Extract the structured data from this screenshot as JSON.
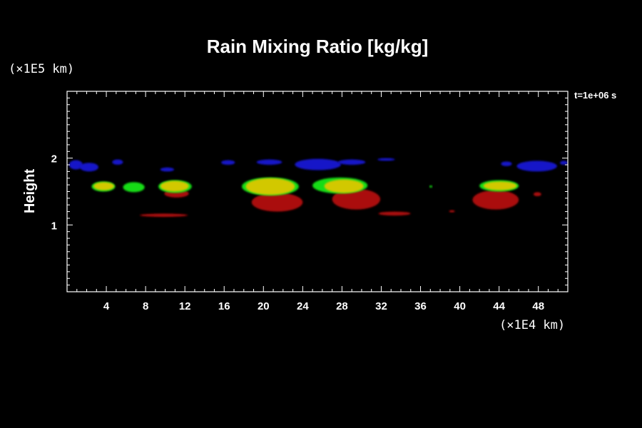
{
  "chart_data": {
    "type": "heatmap",
    "title": "Rain Mixing Ratio [kg/kg]",
    "ylabel": "Height",
    "x_unit": "(×1E4 km)",
    "y_unit": "(×1E5 km)",
    "time_label": "t=1e+06 s",
    "xlim": [
      0,
      51
    ],
    "ylim": [
      0,
      3
    ],
    "x_ticks": [
      4,
      8,
      12,
      16,
      20,
      24,
      28,
      32,
      36,
      40,
      44,
      48
    ],
    "x_tick_labels": [
      "4",
      "8",
      "12",
      "16",
      "20",
      "24",
      "28",
      "32",
      "36",
      "40",
      "44",
      "48"
    ],
    "y_ticks": [
      1,
      2
    ],
    "y_tick_labels": [
      "1",
      "2"
    ],
    "colors": {
      "blue": "#1414c8",
      "green": "#14dc14",
      "yellow": "#d2c800",
      "red": "#aa0a0a"
    },
    "regions": [
      {
        "level": "blue",
        "x": [
          0.2,
          1.6
        ],
        "y": [
          1.83,
          1.97
        ]
      },
      {
        "level": "blue",
        "x": [
          1.3,
          3.2
        ],
        "y": [
          1.8,
          1.93
        ]
      },
      {
        "level": "blue",
        "x": [
          4.6,
          5.7
        ],
        "y": [
          1.9,
          1.98
        ]
      },
      {
        "level": "blue",
        "x": [
          9.5,
          10.9
        ],
        "y": [
          1.8,
          1.86
        ]
      },
      {
        "level": "blue",
        "x": [
          15.7,
          17.1
        ],
        "y": [
          1.9,
          1.97
        ]
      },
      {
        "level": "blue",
        "x": [
          19.3,
          21.9
        ],
        "y": [
          1.9,
          1.98
        ]
      },
      {
        "level": "blue",
        "x": [
          23.2,
          27.9
        ],
        "y": [
          1.82,
          1.99
        ]
      },
      {
        "level": "blue",
        "x": [
          27.6,
          30.4
        ],
        "y": [
          1.9,
          1.98
        ]
      },
      {
        "level": "blue",
        "x": [
          31.6,
          33.4
        ],
        "y": [
          1.96,
          2.0
        ]
      },
      {
        "level": "blue",
        "x": [
          44.2,
          45.3
        ],
        "y": [
          1.88,
          1.95
        ]
      },
      {
        "level": "blue",
        "x": [
          45.8,
          49.9
        ],
        "y": [
          1.8,
          1.96
        ]
      },
      {
        "level": "blue",
        "x": [
          50.2,
          51.0
        ],
        "y": [
          1.9,
          1.96
        ]
      },
      {
        "level": "red",
        "x": [
          7.4,
          12.3
        ],
        "y": [
          1.12,
          1.17
        ]
      },
      {
        "level": "red",
        "x": [
          9.9,
          12.4
        ],
        "y": [
          1.41,
          1.53
        ]
      },
      {
        "level": "red",
        "x": [
          18.8,
          24.0
        ],
        "y": [
          1.2,
          1.48
        ]
      },
      {
        "level": "red",
        "x": [
          27.0,
          31.9
        ],
        "y": [
          1.23,
          1.54
        ]
      },
      {
        "level": "red",
        "x": [
          31.7,
          35.0
        ],
        "y": [
          1.14,
          1.2
        ]
      },
      {
        "level": "red",
        "x": [
          38.9,
          39.5
        ],
        "y": [
          1.19,
          1.22
        ]
      },
      {
        "level": "red",
        "x": [
          41.3,
          46.0
        ],
        "y": [
          1.23,
          1.52
        ]
      },
      {
        "level": "red",
        "x": [
          47.5,
          48.3
        ],
        "y": [
          1.43,
          1.49
        ]
      },
      {
        "level": "green",
        "x": [
          2.5,
          4.9
        ],
        "y": [
          1.5,
          1.65
        ]
      },
      {
        "level": "green",
        "x": [
          5.7,
          7.9
        ],
        "y": [
          1.49,
          1.64
        ]
      },
      {
        "level": "green",
        "x": [
          9.3,
          12.7
        ],
        "y": [
          1.48,
          1.67
        ]
      },
      {
        "level": "green",
        "x": [
          17.8,
          23.6
        ],
        "y": [
          1.44,
          1.71
        ]
      },
      {
        "level": "green",
        "x": [
          25.0,
          30.6
        ],
        "y": [
          1.47,
          1.71
        ]
      },
      {
        "level": "green",
        "x": [
          36.9,
          37.2
        ],
        "y": [
          1.56,
          1.59
        ]
      },
      {
        "level": "green",
        "x": [
          42.0,
          46.0
        ],
        "y": [
          1.5,
          1.67
        ]
      },
      {
        "level": "yellow",
        "x": [
          2.7,
          4.8
        ],
        "y": [
          1.52,
          1.64
        ]
      },
      {
        "level": "yellow",
        "x": [
          9.5,
          12.4
        ],
        "y": [
          1.5,
          1.66
        ]
      },
      {
        "level": "yellow",
        "x": [
          18.2,
          23.2
        ],
        "y": [
          1.45,
          1.7
        ]
      },
      {
        "level": "yellow",
        "x": [
          26.2,
          30.2
        ],
        "y": [
          1.48,
          1.68
        ]
      },
      {
        "level": "yellow",
        "x": [
          42.4,
          45.8
        ],
        "y": [
          1.52,
          1.65
        ]
      }
    ]
  }
}
